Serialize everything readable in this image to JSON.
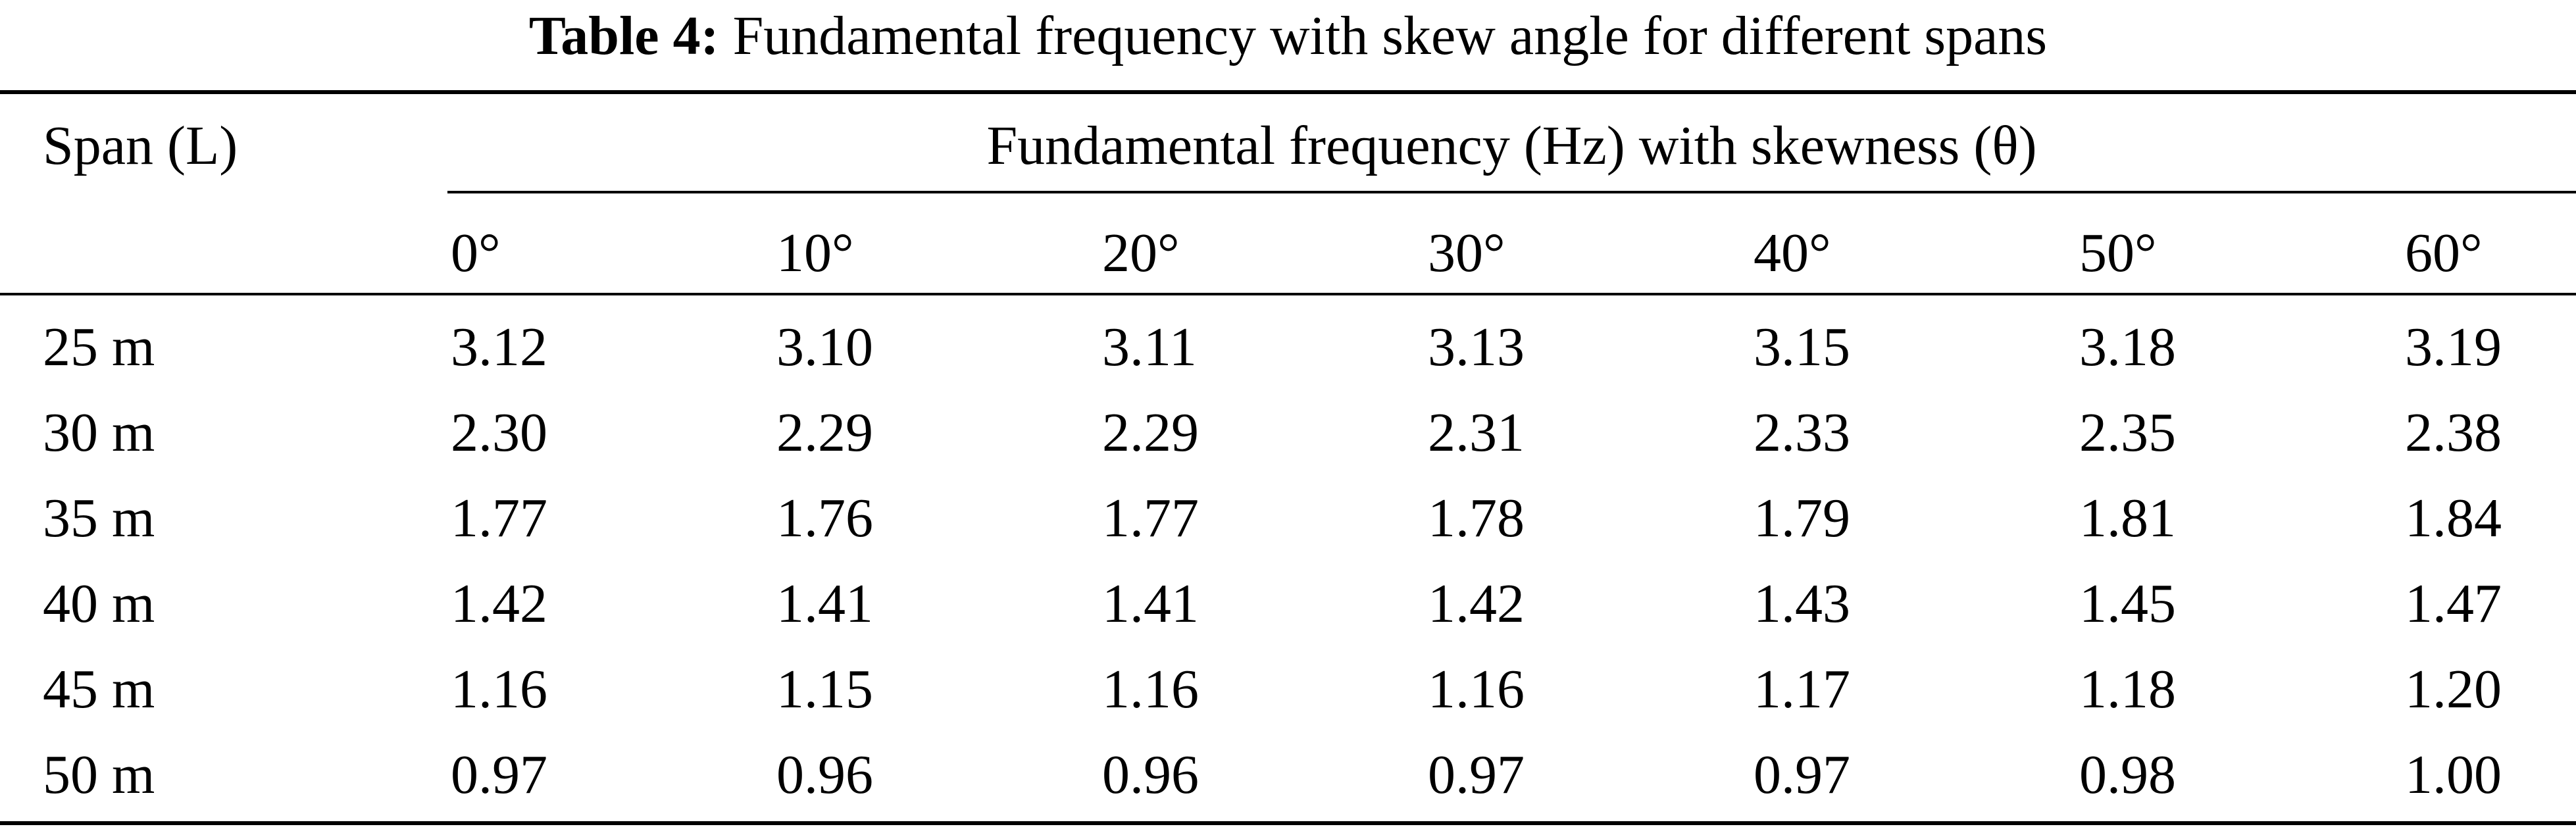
{
  "table": {
    "caption_label": "Table 4:",
    "caption_text": "Fundamental frequency with skew angle for different spans",
    "row_header": "Span (L)",
    "group_header": "Fundamental frequency (Hz) with skewness (θ)",
    "angles": [
      "0°",
      "10°",
      "20°",
      "30°",
      "40°",
      "50°",
      "60°"
    ],
    "rows": [
      {
        "span": "25 m",
        "values": [
          "3.12",
          "3.10",
          "3.11",
          "3.13",
          "3.15",
          "3.18",
          "3.19"
        ]
      },
      {
        "span": "30 m",
        "values": [
          "2.30",
          "2.29",
          "2.29",
          "2.31",
          "2.33",
          "2.35",
          "2.38"
        ]
      },
      {
        "span": "35 m",
        "values": [
          "1.77",
          "1.76",
          "1.77",
          "1.78",
          "1.79",
          "1.81",
          "1.84"
        ]
      },
      {
        "span": "40 m",
        "values": [
          "1.42",
          "1.41",
          "1.41",
          "1.42",
          "1.43",
          "1.45",
          "1.47"
        ]
      },
      {
        "span": "45 m",
        "values": [
          "1.16",
          "1.15",
          "1.16",
          "1.16",
          "1.17",
          "1.18",
          "1.20"
        ]
      },
      {
        "span": "50 m",
        "values": [
          "0.97",
          "0.96",
          "0.96",
          "0.97",
          "0.97",
          "0.98",
          "1.00"
        ]
      }
    ]
  }
}
